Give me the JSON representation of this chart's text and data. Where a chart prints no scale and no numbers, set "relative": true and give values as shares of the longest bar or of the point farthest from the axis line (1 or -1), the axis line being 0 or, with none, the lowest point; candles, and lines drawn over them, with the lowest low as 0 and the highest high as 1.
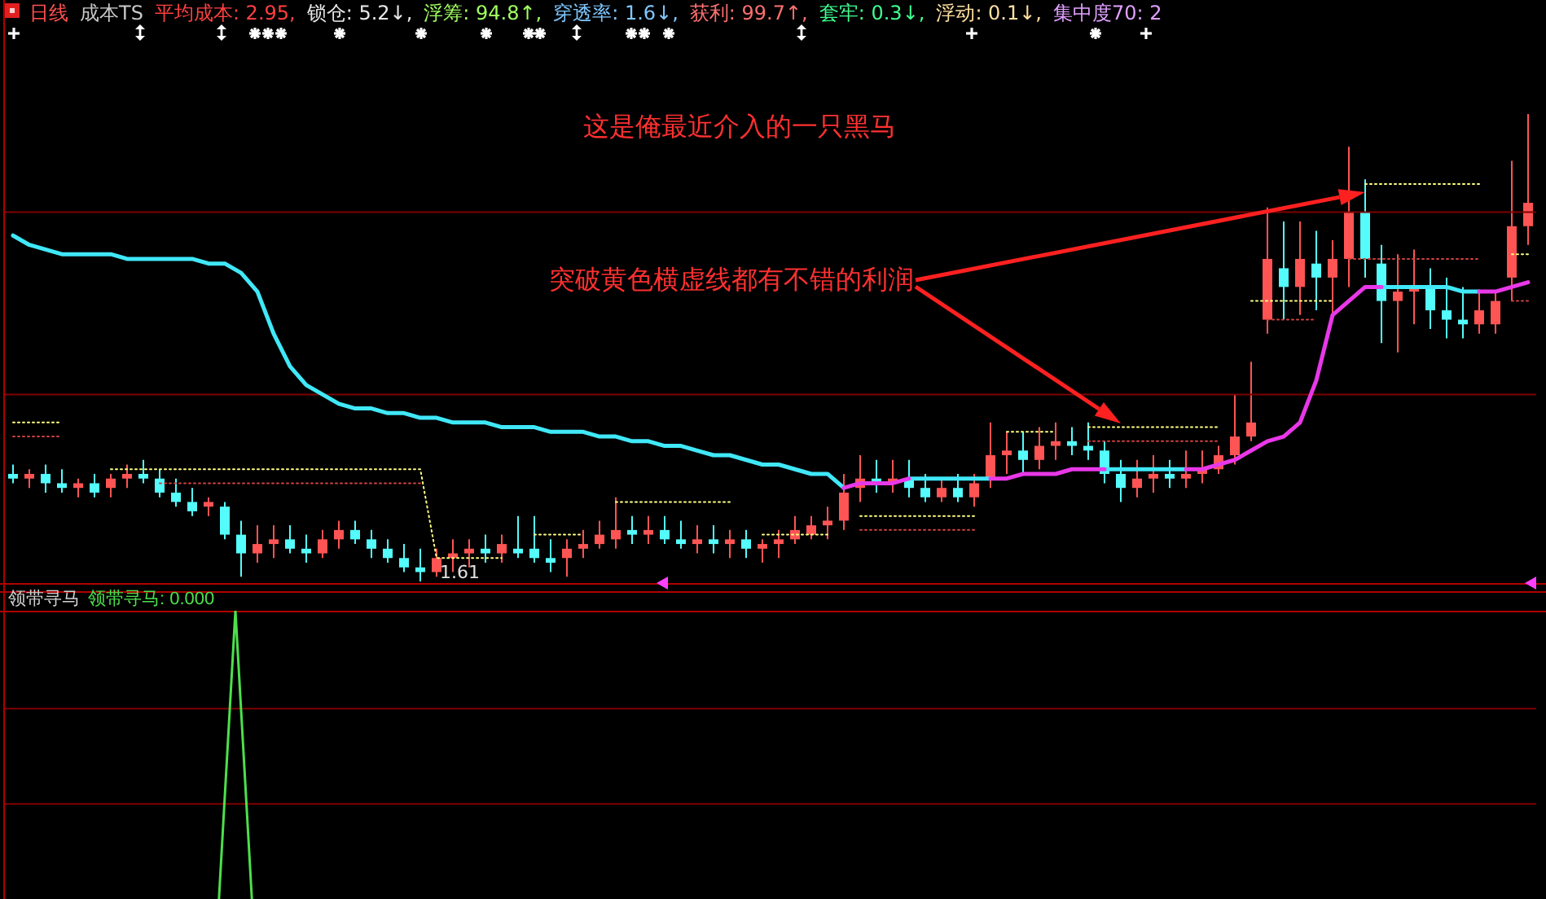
{
  "chart_data": [
    {
      "type": "candlestick",
      "relative": true,
      "tick_labels": false,
      "categories": [
        null,
        null,
        null,
        null,
        null,
        null,
        null,
        null,
        null,
        null,
        null,
        null,
        null,
        null,
        null,
        null,
        null,
        null,
        null,
        null,
        null,
        null,
        null,
        null,
        null,
        null,
        null,
        null,
        null,
        null,
        null,
        null,
        null,
        null,
        null,
        null,
        null,
        null,
        null,
        null,
        null,
        null,
        null,
        null,
        null,
        null,
        null,
        null,
        null,
        null,
        null,
        null,
        null,
        null,
        null,
        null,
        null,
        null,
        null,
        null,
        null,
        null,
        null,
        null,
        null,
        null,
        null,
        null,
        null,
        null,
        null,
        null,
        null,
        null,
        null,
        null,
        null,
        null,
        null,
        null,
        null,
        null,
        null,
        null,
        null,
        null,
        null,
        null,
        null,
        null,
        null,
        null,
        null,
        null
      ],
      "ohlc": [
        [
          0.23,
          0.25,
          0.21,
          0.22
        ],
        [
          0.22,
          0.24,
          0.2,
          0.23
        ],
        [
          0.23,
          0.25,
          0.19,
          0.21
        ],
        [
          0.21,
          0.24,
          0.19,
          0.2
        ],
        [
          0.2,
          0.22,
          0.18,
          0.21
        ],
        [
          0.21,
          0.23,
          0.18,
          0.19
        ],
        [
          0.2,
          0.23,
          0.18,
          0.22
        ],
        [
          0.22,
          0.25,
          0.2,
          0.23
        ],
        [
          0.23,
          0.26,
          0.21,
          0.22
        ],
        [
          0.22,
          0.24,
          0.18,
          0.19
        ],
        [
          0.19,
          0.22,
          0.16,
          0.17
        ],
        [
          0.17,
          0.2,
          0.14,
          0.15
        ],
        [
          0.16,
          0.18,
          0.14,
          0.17
        ],
        [
          0.16,
          0.17,
          0.09,
          0.1
        ],
        [
          0.1,
          0.13,
          0.01,
          0.06
        ],
        [
          0.06,
          0.12,
          0.04,
          0.08
        ],
        [
          0.08,
          0.12,
          0.05,
          0.09
        ],
        [
          0.09,
          0.12,
          0.06,
          0.07
        ],
        [
          0.07,
          0.1,
          0.04,
          0.06
        ],
        [
          0.06,
          0.11,
          0.05,
          0.09
        ],
        [
          0.09,
          0.13,
          0.07,
          0.11
        ],
        [
          0.11,
          0.13,
          0.08,
          0.09
        ],
        [
          0.09,
          0.11,
          0.05,
          0.07
        ],
        [
          0.07,
          0.09,
          0.04,
          0.05
        ],
        [
          0.05,
          0.08,
          0.02,
          0.03
        ],
        [
          0.03,
          0.07,
          0,
          0.02
        ],
        [
          0.02,
          0.07,
          0.01,
          0.05
        ],
        [
          0.05,
          0.09,
          0.02,
          0.06
        ],
        [
          0.06,
          0.09,
          0.03,
          0.07
        ],
        [
          0.07,
          0.1,
          0.04,
          0.06
        ],
        [
          0.06,
          0.1,
          0.04,
          0.08
        ],
        [
          0.07,
          0.14,
          0.05,
          0.06
        ],
        [
          0.07,
          0.14,
          0.04,
          0.05
        ],
        [
          0.05,
          0.09,
          0.02,
          0.04
        ],
        [
          0.05,
          0.09,
          0.01,
          0.07
        ],
        [
          0.07,
          0.11,
          0.05,
          0.08
        ],
        [
          0.08,
          0.13,
          0.07,
          0.1
        ],
        [
          0.09,
          0.18,
          0.07,
          0.11
        ],
        [
          0.11,
          0.14,
          0.08,
          0.1
        ],
        [
          0.1,
          0.14,
          0.08,
          0.11
        ],
        [
          0.11,
          0.14,
          0.08,
          0.09
        ],
        [
          0.09,
          0.13,
          0.07,
          0.08
        ],
        [
          0.08,
          0.12,
          0.06,
          0.09
        ],
        [
          0.09,
          0.12,
          0.06,
          0.08
        ],
        [
          0.08,
          0.11,
          0.05,
          0.09
        ],
        [
          0.09,
          0.11,
          0.05,
          0.07
        ],
        [
          0.07,
          0.09,
          0.04,
          0.08
        ],
        [
          0.08,
          0.11,
          0.05,
          0.09
        ],
        [
          0.09,
          0.14,
          0.08,
          0.11
        ],
        [
          0.1,
          0.14,
          0.09,
          0.12
        ],
        [
          0.12,
          0.16,
          0.09,
          0.13
        ],
        [
          0.13,
          0.23,
          0.11,
          0.19
        ],
        [
          0.2,
          0.27,
          0.17,
          0.22
        ],
        [
          0.22,
          0.26,
          0.19,
          0.21
        ],
        [
          0.21,
          0.26,
          0.19,
          0.22
        ],
        [
          0.22,
          0.26,
          0.18,
          0.2
        ],
        [
          0.2,
          0.23,
          0.17,
          0.18
        ],
        [
          0.18,
          0.22,
          0.17,
          0.2
        ],
        [
          0.2,
          0.23,
          0.17,
          0.18
        ],
        [
          0.18,
          0.23,
          0.16,
          0.21
        ],
        [
          0.22,
          0.34,
          0.2,
          0.27
        ],
        [
          0.27,
          0.32,
          0.23,
          0.28
        ],
        [
          0.28,
          0.32,
          0.23,
          0.26
        ],
        [
          0.26,
          0.33,
          0.24,
          0.29
        ],
        [
          0.29,
          0.34,
          0.26,
          0.3
        ],
        [
          0.3,
          0.33,
          0.27,
          0.29
        ],
        [
          0.29,
          0.34,
          0.26,
          0.28
        ],
        [
          0.28,
          0.3,
          0.21,
          0.23
        ],
        [
          0.23,
          0.26,
          0.17,
          0.2
        ],
        [
          0.2,
          0.26,
          0.18,
          0.22
        ],
        [
          0.22,
          0.27,
          0.19,
          0.23
        ],
        [
          0.23,
          0.26,
          0.2,
          0.22
        ],
        [
          0.22,
          0.28,
          0.2,
          0.23
        ],
        [
          0.23,
          0.28,
          0.21,
          0.24
        ],
        [
          0.24,
          0.29,
          0.23,
          0.27
        ],
        [
          0.27,
          0.4,
          0.25,
          0.31
        ],
        [
          0.31,
          0.47,
          0.3,
          0.34
        ],
        [
          0.56,
          0.8,
          0.53,
          0.69
        ],
        [
          0.67,
          0.77,
          0.56,
          0.63
        ],
        [
          0.63,
          0.77,
          0.57,
          0.69
        ],
        [
          0.68,
          0.75,
          0.58,
          0.65
        ],
        [
          0.65,
          0.73,
          0.57,
          0.69
        ],
        [
          0.69,
          0.93,
          0.63,
          0.79
        ],
        [
          0.79,
          0.86,
          0.65,
          0.69
        ],
        [
          0.68,
          0.72,
          0.51,
          0.6
        ],
        [
          0.6,
          0.7,
          0.49,
          0.62
        ],
        [
          0.62,
          0.71,
          0.55,
          0.63
        ],
        [
          0.63,
          0.67,
          0.54,
          0.58
        ],
        [
          0.58,
          0.65,
          0.52,
          0.56
        ],
        [
          0.56,
          0.63,
          0.52,
          0.55
        ],
        [
          0.55,
          0.62,
          0.53,
          0.58
        ],
        [
          0.55,
          0.62,
          0.53,
          0.6
        ],
        [
          0.65,
          0.9,
          0.6,
          0.76
        ],
        [
          0.76,
          1,
          0.72,
          0.81
        ]
      ],
      "colors": [
        "#54fcfc",
        "#ff5454",
        "#54fcfc",
        "#54fcfc",
        "#ff5454",
        "#54fcfc",
        "#ff5454",
        "#ff5454",
        "#54fcfc",
        "#54fcfc",
        "#54fcfc",
        "#54fcfc",
        "#ff5454",
        "#54fcfc",
        "#54fcfc",
        "#ff5454",
        "#ff5454",
        "#54fcfc",
        "#54fcfc",
        "#ff5454",
        "#ff5454",
        "#54fcfc",
        "#54fcfc",
        "#54fcfc",
        "#54fcfc",
        "#54fcfc",
        "#ff5454",
        "#ff5454",
        "#ff5454",
        "#54fcfc",
        "#ff5454",
        "#54fcfc",
        "#54fcfc",
        "#54fcfc",
        "#ff5454",
        "#ff5454",
        "#ff5454",
        "#ff5454",
        "#54fcfc",
        "#ff5454",
        "#54fcfc",
        "#54fcfc",
        "#ff5454",
        "#54fcfc",
        "#ff5454",
        "#54fcfc",
        "#ff5454",
        "#ff5454",
        "#ff5454",
        "#ff5454",
        "#ff5454",
        "#ff5454",
        "#ff5454",
        "#54fcfc",
        "#ff5454",
        "#54fcfc",
        "#54fcfc",
        "#ff5454",
        "#54fcfc",
        "#ff5454",
        "#ff5454",
        "#ff5454",
        "#54fcfc",
        "#ff5454",
        "#ff5454",
        "#54fcfc",
        "#54fcfc",
        "#54fcfc",
        "#54fcfc",
        "#ff5454",
        "#ff5454",
        "#54fcfc",
        "#ff5454",
        "#ff5454",
        "#ff5454",
        "#ff5454",
        "#ff5454",
        "#ff5454",
        "#54fcfc",
        "#ff5454",
        "#54fcfc",
        "#ff5454",
        "#ff5454",
        "#54fcfc",
        "#54fcfc",
        "#ff5454",
        "#ff5454",
        "#54fcfc",
        "#54fcfc",
        "#54fcfc",
        "#ff5454",
        "#ff5454",
        "#ff5454",
        "#ff5454"
      ],
      "series": [
        {
          "type": "line",
          "color": "#ffff80",
          "line_style": "dotted",
          "values": [
            0.34,
            0.34,
            0.34,
            0.34,
            null,
            null,
            0.24,
            0.24,
            0.24,
            0.24,
            0.24,
            0.24,
            0.24,
            0.24,
            0.24,
            0.24,
            0.24,
            0.24,
            0.24,
            0.24,
            0.24,
            0.24,
            0.24,
            0.24,
            0.24,
            0.24,
            0.05,
            0.05,
            0.05,
            0.05,
            0.05,
            null,
            0.1,
            0.1,
            0.1,
            0.1,
            null,
            0.17,
            0.17,
            0.17,
            0.17,
            0.17,
            0.17,
            0.17,
            0.17,
            null,
            0.1,
            0.1,
            0.1,
            0.1,
            0.1,
            null,
            0.14,
            0.14,
            0.14,
            0.14,
            0.14,
            0.14,
            0.14,
            0.14,
            null,
            0.32,
            0.32,
            0.32,
            0.32,
            null,
            0.33,
            0.33,
            0.33,
            0.33,
            0.33,
            0.33,
            0.33,
            0.33,
            0.33,
            null,
            0.6,
            0.6,
            0.6,
            0.6,
            0.6,
            0.6,
            null,
            0.85,
            0.85,
            0.85,
            0.85,
            0.85,
            0.85,
            0.85,
            0.85,
            null,
            0.7,
            0.7
          ]
        },
        {
          "type": "line",
          "color": "#d04040",
          "line_style": "dotted",
          "values": [
            0.31,
            0.31,
            0.31,
            0.31,
            null,
            null,
            null,
            null,
            null,
            0.21,
            0.21,
            0.21,
            0.21,
            0.21,
            0.21,
            0.21,
            0.21,
            0.21,
            0.21,
            0.21,
            0.21,
            0.21,
            0.21,
            0.21,
            0.21,
            0.21,
            null,
            null,
            null,
            null,
            null,
            null,
            null,
            null,
            null,
            null,
            null,
            null,
            null,
            null,
            null,
            null,
            null,
            null,
            null,
            null,
            null,
            null,
            null,
            null,
            null,
            null,
            0.11,
            0.11,
            0.11,
            0.11,
            0.11,
            0.11,
            0.11,
            0.11,
            null,
            null,
            null,
            null,
            null,
            null,
            0.3,
            0.3,
            0.3,
            0.3,
            0.3,
            0.3,
            0.3,
            0.3,
            0.3,
            null,
            null,
            0.56,
            0.56,
            0.56,
            0.56,
            null,
            0.69,
            0.69,
            0.69,
            0.69,
            0.69,
            0.69,
            0.69,
            0.69,
            0.69,
            null,
            0.6,
            0.6
          ]
        },
        {
          "type": "line",
          "color": "#40e8f8",
          "values": [
            0.74,
            0.72,
            0.71,
            0.7,
            0.7,
            0.7,
            0.7,
            0.69,
            0.69,
            0.69,
            0.69,
            0.69,
            0.68,
            0.68,
            0.66,
            0.62,
            0.53,
            0.46,
            0.42,
            0.4,
            0.38,
            0.37,
            0.37,
            0.36,
            0.36,
            0.35,
            0.35,
            0.34,
            0.34,
            0.34,
            0.33,
            0.33,
            0.33,
            0.32,
            0.32,
            0.32,
            0.31,
            0.31,
            0.3,
            0.3,
            0.29,
            0.29,
            0.28,
            0.27,
            0.27,
            0.26,
            0.25,
            0.25,
            0.24,
            0.23,
            0.23,
            0.2,
            null,
            null,
            null,
            0.22,
            0.22,
            0.22,
            0.22,
            0.22,
            0.22,
            null,
            null,
            null,
            null,
            null,
            null,
            0.24,
            0.24,
            0.24,
            0.24,
            0.24,
            0.24,
            null,
            null,
            null,
            null,
            null,
            null,
            null,
            null,
            null,
            null,
            null,
            0.63,
            0.63,
            0.63,
            0.63,
            0.63,
            0.62,
            0.62,
            null,
            null,
            null
          ]
        },
        {
          "type": "line",
          "color": "#e838e8",
          "values": [
            null,
            null,
            null,
            null,
            null,
            null,
            null,
            null,
            null,
            null,
            null,
            null,
            null,
            null,
            null,
            null,
            null,
            null,
            null,
            null,
            null,
            null,
            null,
            null,
            null,
            null,
            null,
            null,
            null,
            null,
            null,
            null,
            null,
            null,
            null,
            null,
            null,
            null,
            null,
            null,
            null,
            null,
            null,
            null,
            null,
            null,
            null,
            null,
            null,
            null,
            null,
            0.2,
            0.21,
            0.21,
            0.21,
            0.22,
            null,
            null,
            null,
            null,
            0.22,
            0.22,
            0.23,
            0.23,
            0.23,
            0.24,
            0.24,
            0.24,
            null,
            null,
            null,
            null,
            0.24,
            0.24,
            0.25,
            0.26,
            0.28,
            0.3,
            0.31,
            0.34,
            0.43,
            0.57,
            0.6,
            0.63,
            0.63,
            null,
            null,
            null,
            null,
            null,
            0.62,
            0.62,
            0.63,
            0.64
          ]
        }
      ],
      "ref_lines": [
        {
          "axis": "y",
          "value": 0.79,
          "color": "#800000"
        },
        {
          "axis": "y",
          "value": 0.4,
          "color": "#800000"
        }
      ],
      "annotations": [
        "日线",
        "成本TS",
        "平均成本: 2.95,",
        "锁仓: 5.2↓,",
        "浮筹: 94.8↑,",
        "穿透率: 1.6↓,",
        "获利: 99.7↑,",
        "套牢: 0.3↓,",
        "浮动: 0.1↓,",
        "集中度70: 2",
        "这是俺最近介入的一只黑马",
        "突破黄色横虚线都有不错的利润",
        "1.61"
      ]
    },
    {
      "type": "line",
      "relative": true,
      "tick_labels": false,
      "title": "领带寻马",
      "categories": [
        null,
        null,
        null,
        null,
        null,
        null,
        null,
        null,
        null,
        null,
        null,
        null,
        null,
        null,
        null,
        null,
        null,
        null,
        null,
        null,
        null,
        null,
        null,
        null,
        null,
        null,
        null,
        null,
        null,
        null,
        null,
        null,
        null,
        null,
        null,
        null,
        null,
        null,
        null,
        null,
        null,
        null,
        null,
        null,
        null,
        null,
        null,
        null,
        null,
        null,
        null,
        null,
        null,
        null,
        null,
        null,
        null,
        null,
        null,
        null,
        null,
        null,
        null,
        null,
        null,
        null,
        null,
        null,
        null,
        null,
        null,
        null,
        null,
        null,
        null,
        null,
        null,
        null,
        null,
        null,
        null,
        null,
        null,
        null,
        null,
        null,
        null,
        null,
        null,
        null,
        null,
        null,
        null,
        null
      ],
      "series": [
        {
          "color": "#4ce04c",
          "values": [
            null,
            null,
            null,
            null,
            null,
            null,
            null,
            null,
            null,
            null,
            null,
            null,
            null,
            0,
            1,
            0,
            null,
            null,
            null,
            null,
            null,
            null,
            null,
            null,
            null,
            null,
            null,
            null,
            null,
            null,
            null,
            null,
            null,
            null,
            null,
            null,
            null,
            null,
            null,
            null,
            null,
            null,
            null,
            null,
            null,
            null,
            null,
            null,
            null,
            null,
            null,
            null,
            null,
            null,
            null,
            null,
            null,
            null,
            null,
            null,
            null,
            null,
            null,
            null,
            null,
            null,
            null,
            null,
            null,
            null,
            null,
            null,
            null,
            null,
            null,
            null,
            null,
            null,
            null,
            null,
            null,
            null,
            null,
            null,
            null,
            null,
            null,
            null,
            null,
            null,
            null,
            null,
            null,
            null
          ]
        }
      ],
      "ref_lines": [
        {
          "axis": "y",
          "value": 0.66,
          "color": "#800000"
        },
        {
          "axis": "y",
          "value": 0.33,
          "color": "#800000"
        }
      ],
      "annotations": [
        "领带寻马: 0.000"
      ]
    }
  ]
}
